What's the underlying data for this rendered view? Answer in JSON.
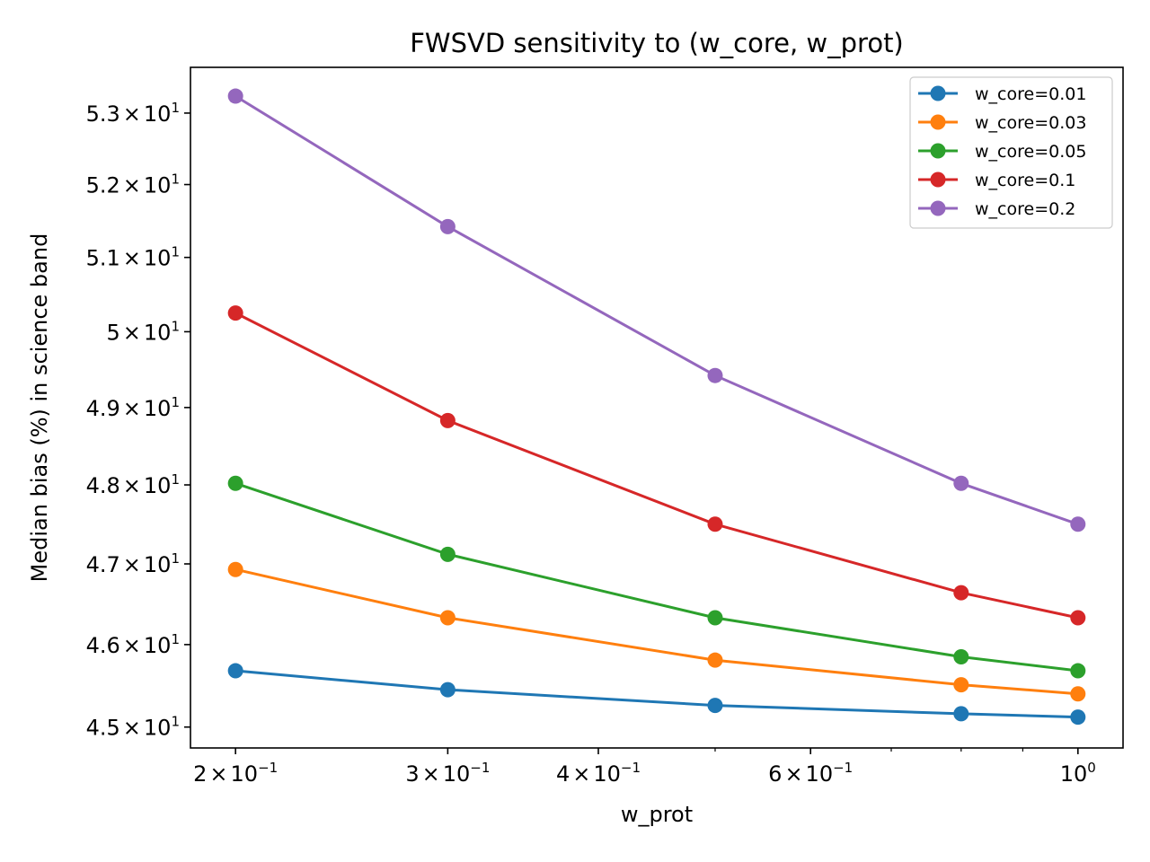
{
  "chart_data": {
    "type": "line",
    "title": "FWSVD sensitivity to (w_core, w_prot)",
    "xlabel": "w_prot",
    "ylabel": "Median bias (%) in science band",
    "x_scale": "log",
    "y_scale": "log",
    "x": [
      0.2,
      0.3,
      0.5,
      0.8,
      1.0
    ],
    "xlim": [
      0.1835,
      1.09
    ],
    "ylim": [
      44.75,
      53.65
    ],
    "x_major_ticks": [
      {
        "value": 0.2,
        "mantissa": "2",
        "base": "10",
        "exp": "−1"
      },
      {
        "value": 0.3,
        "mantissa": "3",
        "base": "10",
        "exp": "−1"
      },
      {
        "value": 0.4,
        "mantissa": "4",
        "base": "10",
        "exp": "−1"
      },
      {
        "value": 0.6,
        "mantissa": "6",
        "base": "10",
        "exp": "−1"
      },
      {
        "value": 1.0,
        "mantissa": "",
        "base": "10",
        "exp": "0"
      }
    ],
    "x_minor_ticks": [
      0.5,
      0.7,
      0.8,
      0.9
    ],
    "y_ticks": [
      {
        "value": 45,
        "mantissa": "4.5",
        "base": "10",
        "exp": "1"
      },
      {
        "value": 46,
        "mantissa": "4.6",
        "base": "10",
        "exp": "1"
      },
      {
        "value": 47,
        "mantissa": "4.7",
        "base": "10",
        "exp": "1"
      },
      {
        "value": 48,
        "mantissa": "4.8",
        "base": "10",
        "exp": "1"
      },
      {
        "value": 49,
        "mantissa": "4.9",
        "base": "10",
        "exp": "1"
      },
      {
        "value": 50,
        "mantissa": "5",
        "base": "10",
        "exp": "1"
      },
      {
        "value": 51,
        "mantissa": "5.1",
        "base": "10",
        "exp": "1"
      },
      {
        "value": 52,
        "mantissa": "5.2",
        "base": "10",
        "exp": "1"
      },
      {
        "value": 53,
        "mantissa": "5.3",
        "base": "10",
        "exp": "1"
      }
    ],
    "grid": false,
    "legend_position": "top-right",
    "series": [
      {
        "name": "w_core=0.01",
        "color": "#1f77b4",
        "values": [
          45.68,
          45.45,
          45.26,
          45.16,
          45.12
        ]
      },
      {
        "name": "w_core=0.03",
        "color": "#ff7f0e",
        "values": [
          46.93,
          46.33,
          45.81,
          45.51,
          45.4
        ]
      },
      {
        "name": "w_core=0.05",
        "color": "#2ca02c",
        "values": [
          48.02,
          47.12,
          46.33,
          45.85,
          45.68
        ]
      },
      {
        "name": "w_core=0.1",
        "color": "#d62728",
        "values": [
          50.25,
          48.83,
          47.5,
          46.64,
          46.33
        ]
      },
      {
        "name": "w_core=0.2",
        "color": "#9467bd",
        "values": [
          53.24,
          51.42,
          49.42,
          48.02,
          47.5
        ]
      }
    ]
  }
}
